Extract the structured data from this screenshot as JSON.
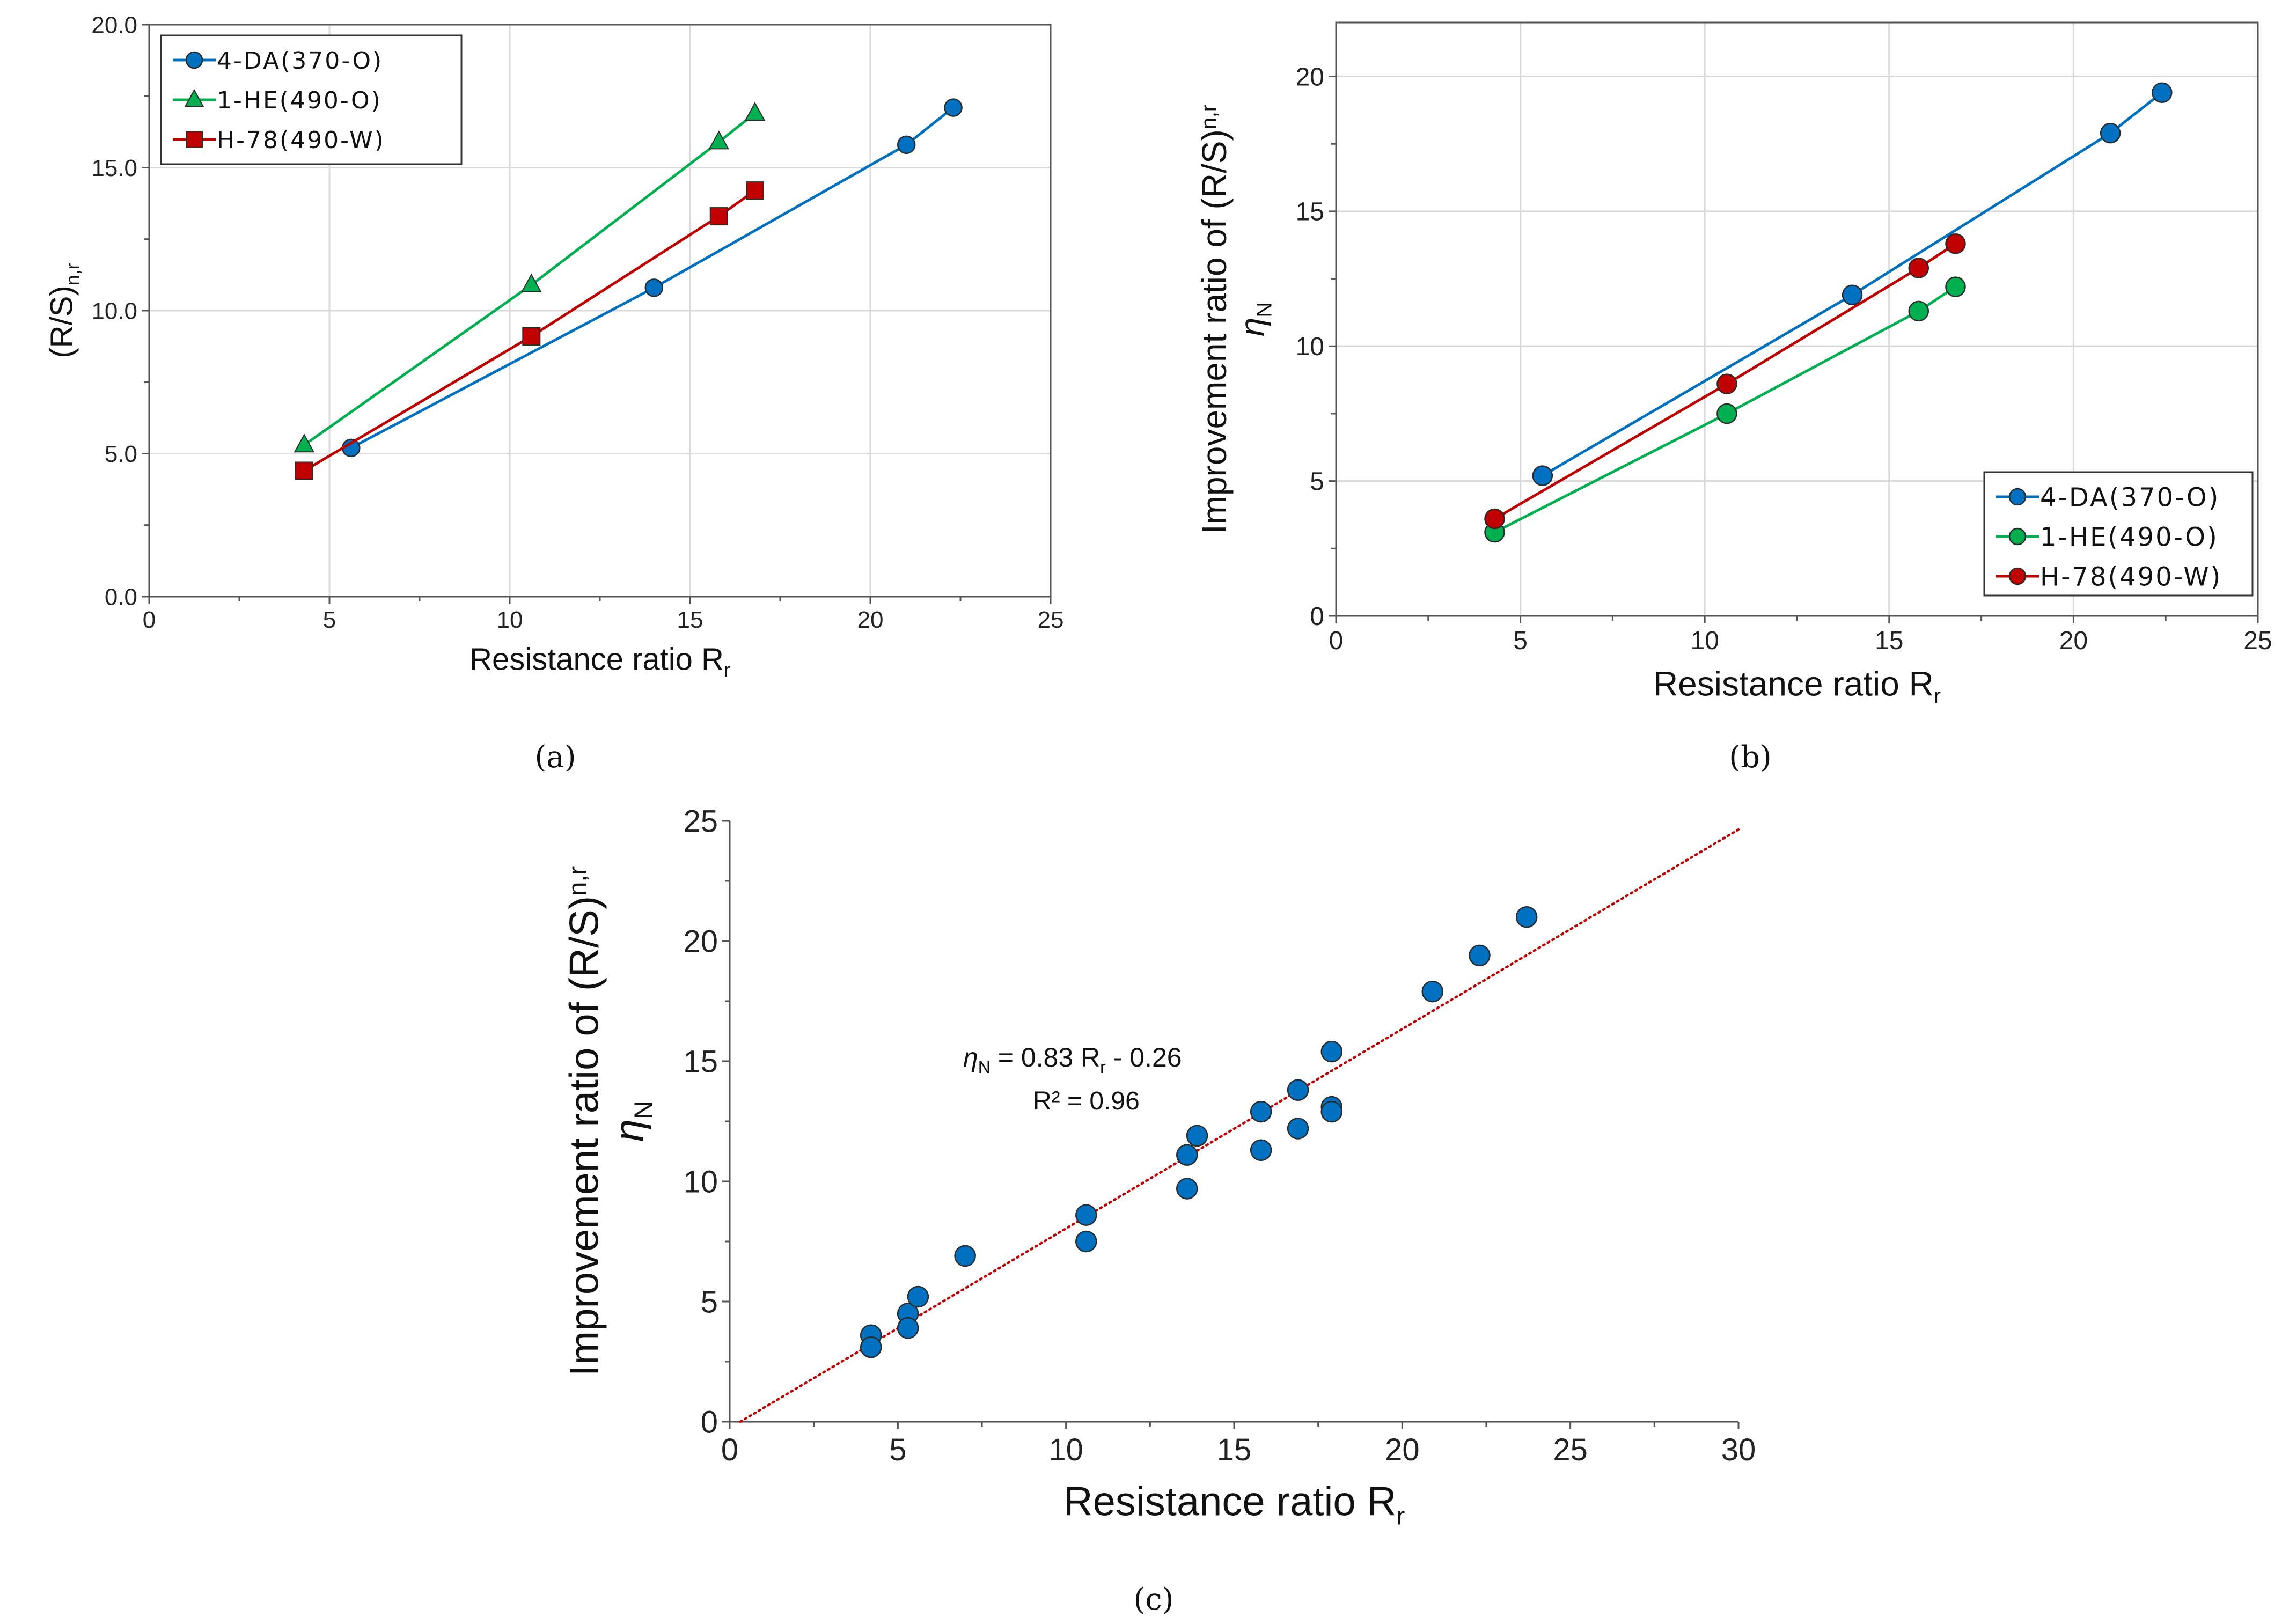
{
  "chart_data": [
    {
      "type": "line",
      "panel": "a",
      "panel_label": "(a)",
      "xlabel": "Resistance ratio R",
      "xlabel_sub": "r",
      "ylabel": "(R/S)",
      "ylabel_sub": "n,r",
      "xlim": [
        0,
        25
      ],
      "ylim": [
        0,
        20
      ],
      "xticks": [
        0,
        5,
        10,
        15,
        20,
        25
      ],
      "yticks": [
        0,
        5,
        10,
        15,
        20
      ],
      "ytick_labels": [
        "0.0",
        "5.0",
        "10.0",
        "15.0",
        "20.0"
      ],
      "grid": true,
      "legend_position": "top-left",
      "series": [
        {
          "name": "4-DA(370-O)",
          "color": "#0070c0",
          "marker": "circle",
          "x": [
            5.6,
            14.0,
            21.0,
            22.3
          ],
          "y": [
            5.2,
            10.8,
            15.8,
            17.1
          ]
        },
        {
          "name": "1-HE(490-O)",
          "color": "#00b050",
          "marker": "triangle",
          "x": [
            4.3,
            10.6,
            15.8,
            16.8
          ],
          "y": [
            5.3,
            10.9,
            15.9,
            16.9
          ]
        },
        {
          "name": "H-78(490-W)",
          "color": "#c00000",
          "marker": "square",
          "x": [
            4.3,
            10.6,
            15.8,
            16.8
          ],
          "y": [
            4.4,
            9.1,
            13.3,
            14.2
          ]
        }
      ]
    },
    {
      "type": "line",
      "panel": "b",
      "panel_label": "(b)",
      "xlabel": "Resistance ratio R",
      "xlabel_sub": "r",
      "ylabel": "Improvement ratio of (R/S)",
      "ylabel_sub": "n,r",
      "ylabel2": "η",
      "ylabel2_sub": "N",
      "xlim": [
        0,
        25
      ],
      "ylim": [
        0,
        22
      ],
      "xticks": [
        0,
        5,
        10,
        15,
        20,
        25
      ],
      "yticks": [
        0,
        5,
        10,
        15,
        20
      ],
      "ytick_labels": [
        "0",
        "5",
        "10",
        "15",
        "20"
      ],
      "grid": true,
      "legend_position": "bottom-right",
      "series": [
        {
          "name": "4-DA(370-O)",
          "color": "#0070c0",
          "marker": "circle",
          "x": [
            5.6,
            14.0,
            21.0,
            22.4
          ],
          "y": [
            5.2,
            11.9,
            17.9,
            19.4
          ]
        },
        {
          "name": "1-HE(490-O)",
          "color": "#00b050",
          "marker": "circle",
          "x": [
            4.3,
            10.6,
            15.8,
            16.8
          ],
          "y": [
            3.1,
            7.5,
            11.3,
            12.2
          ]
        },
        {
          "name": "H-78(490-W)",
          "color": "#c00000",
          "marker": "circle",
          "x": [
            4.3,
            10.6,
            15.8,
            16.8
          ],
          "y": [
            3.6,
            8.6,
            12.9,
            13.8
          ]
        }
      ]
    },
    {
      "type": "scatter",
      "panel": "c",
      "panel_label": "(c)",
      "xlabel": "Resistance ratio R",
      "xlabel_sub": "r",
      "ylabel": "Improvement ratio of (R/S)",
      "ylabel_sub": "n,r",
      "ylabel2": "η",
      "ylabel2_sub": "N",
      "xlim": [
        0,
        30
      ],
      "ylim": [
        0,
        25
      ],
      "xticks": [
        0,
        5,
        10,
        15,
        20,
        25,
        30
      ],
      "yticks": [
        0,
        5,
        10,
        15,
        20,
        25
      ],
      "ytick_labels": [
        "0",
        "5",
        "10",
        "15",
        "20",
        "25"
      ],
      "grid": false,
      "point_color": "#0070c0",
      "trend_color": "#c00000",
      "trendline": {
        "slope": 0.83,
        "intercept": -0.26
      },
      "equation": {
        "lhs": "η",
        "lhs_sub": "N",
        "mid": " = 0.83 R",
        "mid_sub": "r",
        "rhs": " - 0.26"
      },
      "r2_label": "R² = 0.96",
      "points": [
        {
          "x": 4.2,
          "y": 3.6
        },
        {
          "x": 4.2,
          "y": 3.1
        },
        {
          "x": 5.3,
          "y": 4.5
        },
        {
          "x": 5.3,
          "y": 3.9
        },
        {
          "x": 5.6,
          "y": 5.2
        },
        {
          "x": 7.0,
          "y": 6.9
        },
        {
          "x": 10.6,
          "y": 8.6
        },
        {
          "x": 10.6,
          "y": 7.5
        },
        {
          "x": 13.6,
          "y": 11.1
        },
        {
          "x": 13.6,
          "y": 9.7
        },
        {
          "x": 13.9,
          "y": 11.9
        },
        {
          "x": 15.8,
          "y": 12.9
        },
        {
          "x": 15.8,
          "y": 11.3
        },
        {
          "x": 16.9,
          "y": 13.8
        },
        {
          "x": 16.9,
          "y": 12.2
        },
        {
          "x": 17.9,
          "y": 15.4
        },
        {
          "x": 17.9,
          "y": 13.1
        },
        {
          "x": 17.9,
          "y": 12.9
        },
        {
          "x": 20.9,
          "y": 17.9
        },
        {
          "x": 22.3,
          "y": 19.4
        },
        {
          "x": 23.7,
          "y": 21.0
        }
      ]
    }
  ]
}
